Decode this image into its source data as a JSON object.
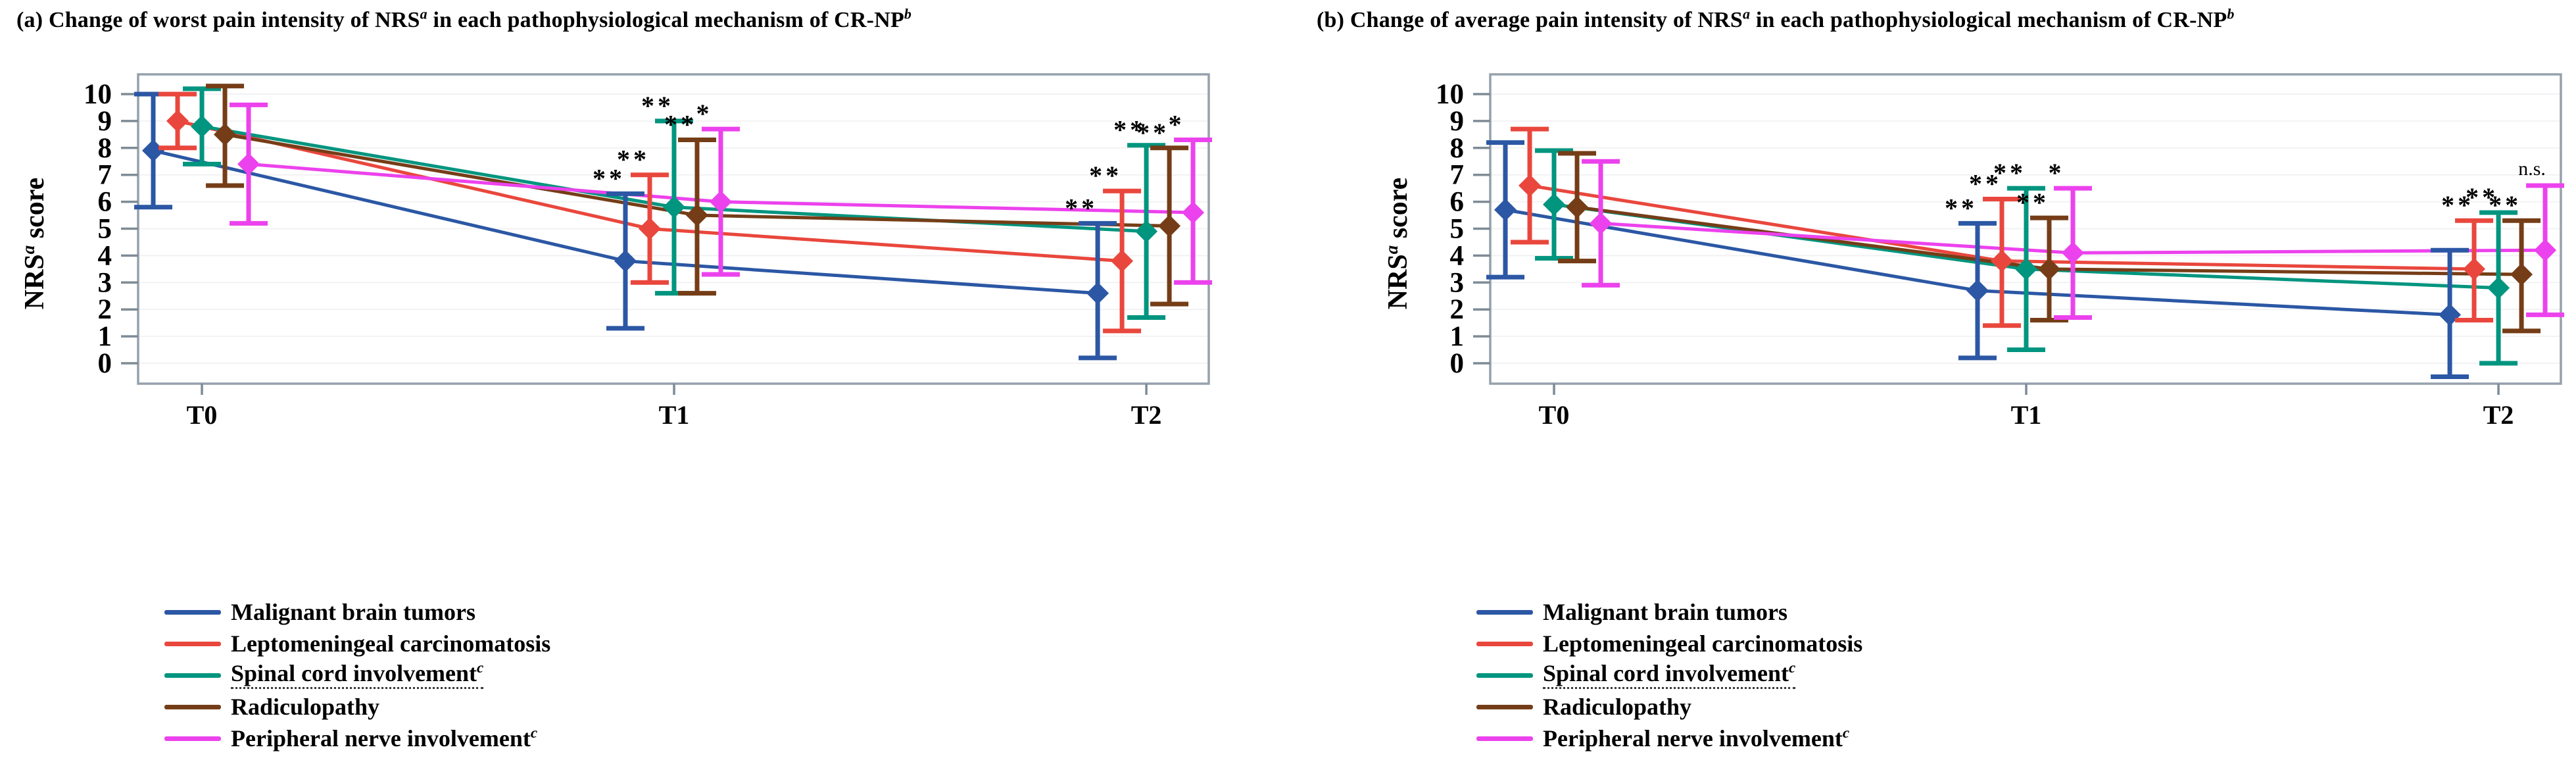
{
  "panels": [
    {
      "key": "a",
      "title": {
        "main": "(a) Change of worst pain intensity of NRS",
        "sup1": "a",
        "mid": " in each pathophysiological mechanism of CR-NP",
        "sup2": "b"
      }
    },
    {
      "key": "b",
      "title": {
        "main": "(b) Change of average pain intensity of NRS",
        "sup1": "a",
        "mid": " in each pathophysiological mechanism of CR-NP",
        "sup2": "b"
      }
    }
  ],
  "axis": {
    "ylabel": {
      "main": "NRS",
      "sup": "a",
      "rest": " score"
    },
    "yticks": [
      "0",
      "1",
      "2",
      "3",
      "4",
      "5",
      "6",
      "7",
      "8",
      "9",
      "10"
    ],
    "xticks": [
      "T0",
      "T1",
      "T2"
    ]
  },
  "legend": {
    "items": [
      {
        "label": "Malignant brain tumors",
        "sup": "",
        "color": "#2B57A4",
        "underlined": false
      },
      {
        "label": "Leptomeningeal carcinomatosis",
        "sup": "",
        "color": "#E9473D",
        "underlined": false
      },
      {
        "label": "Spinal cord involvement",
        "sup": "c",
        "color": "#00957F",
        "underlined": true
      },
      {
        "label": "Radiculopathy",
        "sup": "",
        "color": "#753D17",
        "underlined": false
      },
      {
        "label": "Peripheral nerve involvement",
        "sup": "c",
        "color": "#EC42ED",
        "underlined": false
      }
    ]
  },
  "chart_data": [
    {
      "type": "line",
      "title": "(a) Change of worst pain intensity of NRS^a in each pathophysiological mechanism of CR-NP^b",
      "x_categories": [
        "T0",
        "T1",
        "T2"
      ],
      "ylabel": "NRS^a score",
      "ylim": [
        0,
        10
      ],
      "yticks": [
        0,
        1,
        2,
        3,
        4,
        5,
        6,
        7,
        8,
        9,
        10
      ],
      "grid": "very faint horizontal lines",
      "legend_position": "below-left",
      "error_bars": "mean with whisker caps (values estimated from plot)",
      "series": [
        {
          "name": "Malignant brain tumors",
          "color": "#2B57A4",
          "means": [
            7.9,
            3.8,
            2.6
          ],
          "err_low": [
            5.8,
            1.3,
            0.2
          ],
          "err_high": [
            10.0,
            6.3,
            5.2
          ],
          "significance": [
            null,
            "**",
            "**"
          ]
        },
        {
          "name": "Leptomeningeal carcinomatosis",
          "color": "#E9473D",
          "means": [
            9.0,
            5.0,
            3.8
          ],
          "err_low": [
            8.0,
            3.0,
            1.2
          ],
          "err_high": [
            10.0,
            7.0,
            6.4
          ],
          "significance": [
            null,
            "**",
            "**"
          ]
        },
        {
          "name": "Spinal cord involvement^c",
          "color": "#00957F",
          "means": [
            8.8,
            5.8,
            4.9
          ],
          "err_low": [
            7.4,
            2.6,
            1.7
          ],
          "err_high": [
            10.2,
            9.0,
            8.1
          ],
          "significance": [
            null,
            "**",
            "**"
          ]
        },
        {
          "name": "Radiculopathy",
          "color": "#753D17",
          "means": [
            8.5,
            5.5,
            5.1
          ],
          "err_low": [
            6.6,
            2.6,
            2.2
          ],
          "err_high": [
            10.3,
            8.3,
            8.0
          ],
          "significance": [
            null,
            "**",
            "**"
          ]
        },
        {
          "name": "Peripheral nerve involvement^c",
          "color": "#EC42ED",
          "means": [
            7.4,
            6.0,
            5.6
          ],
          "err_low": [
            5.2,
            3.3,
            3.0
          ],
          "err_high": [
            9.6,
            8.7,
            8.3
          ],
          "significance": [
            null,
            "*",
            "*"
          ]
        }
      ]
    },
    {
      "type": "line",
      "title": "(b) Change of average pain intensity of NRS^a in each pathophysiological mechanism of CR-NP^b",
      "x_categories": [
        "T0",
        "T1",
        "T2"
      ],
      "ylabel": "NRS^a score",
      "ylim": [
        0,
        10
      ],
      "yticks": [
        0,
        1,
        2,
        3,
        4,
        5,
        6,
        7,
        8,
        9,
        10
      ],
      "grid": "very faint horizontal lines",
      "legend_position": "below-left",
      "error_bars": "mean with whisker caps (values estimated from plot)",
      "series": [
        {
          "name": "Malignant brain tumors",
          "color": "#2B57A4",
          "means": [
            5.7,
            2.7,
            1.8
          ],
          "err_low": [
            3.2,
            0.2,
            -0.5
          ],
          "err_high": [
            8.2,
            5.2,
            4.2
          ],
          "significance": [
            null,
            "**",
            null
          ]
        },
        {
          "name": "Leptomeningeal carcinomatosis",
          "color": "#E9473D",
          "means": [
            6.6,
            3.8,
            3.5
          ],
          "err_low": [
            4.5,
            1.4,
            1.6
          ],
          "err_high": [
            8.7,
            6.1,
            5.3
          ],
          "significance": [
            null,
            "**",
            "**"
          ]
        },
        {
          "name": "Spinal cord involvement^c",
          "color": "#00957F",
          "means": [
            5.9,
            3.5,
            2.8
          ],
          "err_low": [
            3.9,
            0.5,
            0.0
          ],
          "err_high": [
            7.9,
            6.5,
            5.6
          ],
          "significance": [
            null,
            "**",
            "**"
          ]
        },
        {
          "name": "Radiculopathy",
          "color": "#753D17",
          "means": [
            5.8,
            3.5,
            3.3
          ],
          "err_low": [
            3.8,
            1.6,
            1.2
          ],
          "err_high": [
            7.8,
            5.4,
            5.3
          ],
          "significance": [
            null,
            "**",
            "**"
          ]
        },
        {
          "name": "Peripheral nerve involvement^c",
          "color": "#EC42ED",
          "means": [
            5.2,
            4.1,
            4.2
          ],
          "err_low": [
            2.9,
            1.7,
            1.8
          ],
          "err_high": [
            7.5,
            6.5,
            6.6
          ],
          "significance": [
            null,
            "*",
            "n.s."
          ]
        }
      ]
    }
  ]
}
